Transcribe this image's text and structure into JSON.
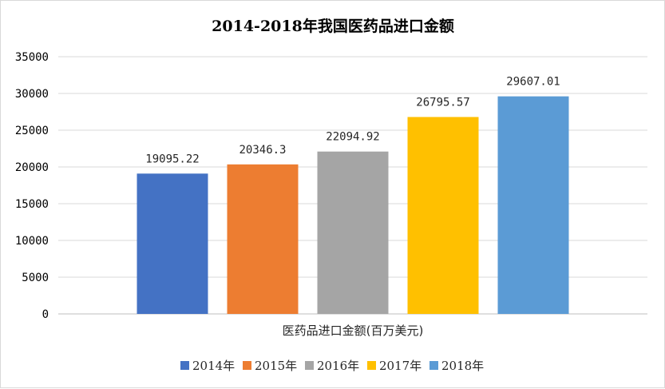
{
  "chart_data": {
    "type": "bar",
    "title": "2014-2018年我国医药品进口金额",
    "categories": [
      "医药品进口金额(百万美元)"
    ],
    "series": [
      {
        "name": "2014年",
        "values": [
          19095.22
        ],
        "label": "19095.22",
        "color": "#4472C4"
      },
      {
        "name": "2015年",
        "values": [
          20346.3
        ],
        "label": "20346.3",
        "color": "#ED7D31"
      },
      {
        "name": "2016年",
        "values": [
          22094.92
        ],
        "label": "22094.92",
        "color": "#A5A5A5"
      },
      {
        "name": "2017年",
        "values": [
          26795.57
        ],
        "label": "26795.57",
        "color": "#FFC000"
      },
      {
        "name": "2018年",
        "values": [
          29607.01
        ],
        "label": "29607.01",
        "color": "#5B9BD5"
      }
    ],
    "ylim": [
      0,
      35000
    ],
    "yticks": [
      0,
      5000,
      10000,
      15000,
      20000,
      25000,
      30000,
      35000
    ],
    "grid": true,
    "legend": "bottom"
  }
}
